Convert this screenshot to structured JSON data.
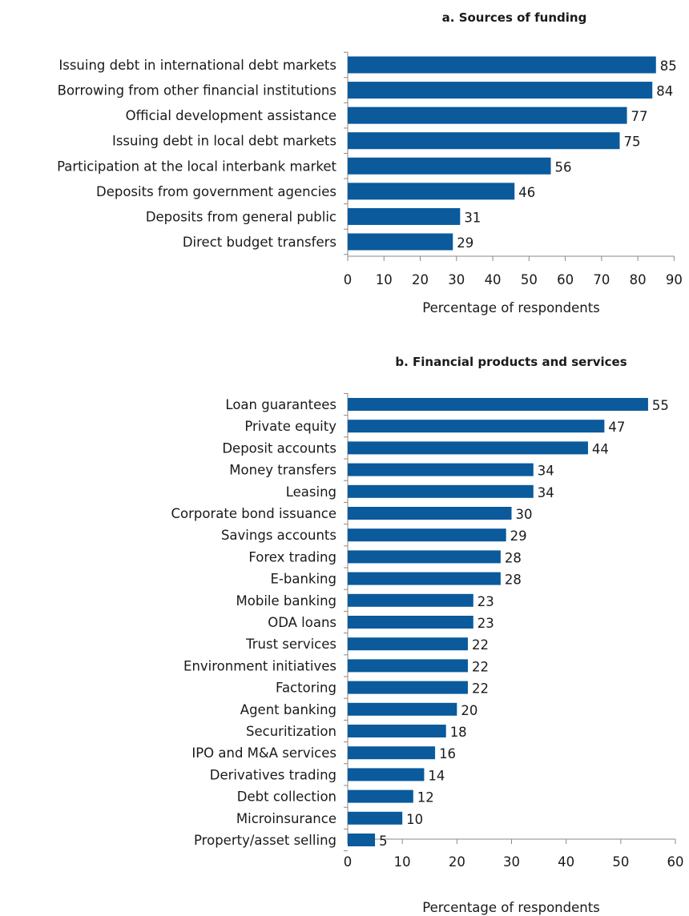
{
  "chart_data": [
    {
      "type": "bar",
      "orientation": "horizontal",
      "title": "a. Sources of funding",
      "xlabel": "Percentage of respondents",
      "ylabel": "",
      "xlim": [
        0,
        90
      ],
      "xticks": [
        0,
        10,
        20,
        30,
        40,
        50,
        60,
        70,
        80,
        90
      ],
      "grid": false,
      "categories": [
        "Issuing debt in international debt markets",
        "Borrowing from other financial institutions",
        "Official development assistance",
        "Issuing debt in local debt markets",
        "Participation at the local interbank market",
        "Deposits from government agencies",
        "Deposits from general public",
        "Direct budget transfers"
      ],
      "values": [
        85,
        84,
        77,
        75,
        56,
        46,
        31,
        29
      ],
      "color": "#0a5a9c"
    },
    {
      "type": "bar",
      "orientation": "horizontal",
      "title": "b. Financial products and services",
      "xlabel": "Percentage of respondents",
      "ylabel": "",
      "xlim": [
        0,
        60
      ],
      "xticks": [
        0,
        10,
        20,
        30,
        40,
        50,
        60
      ],
      "grid": false,
      "categories": [
        "Loan guarantees",
        "Private equity",
        "Deposit accounts",
        "Money transfers",
        "Leasing",
        "Corporate bond issuance",
        "Savings accounts",
        "Forex trading",
        "E-banking",
        "Mobile banking",
        "ODA loans",
        "Trust services",
        "Environment initiatives",
        "Factoring",
        "Agent banking",
        "Securitization",
        "IPO and M&A services",
        "Derivatives trading",
        "Debt collection",
        "Microinsurance",
        "Property/asset selling"
      ],
      "values": [
        55,
        47,
        44,
        34,
        34,
        30,
        29,
        28,
        28,
        23,
        23,
        22,
        22,
        22,
        20,
        18,
        16,
        14,
        12,
        10,
        5
      ],
      "color": "#0a5a9c"
    }
  ]
}
